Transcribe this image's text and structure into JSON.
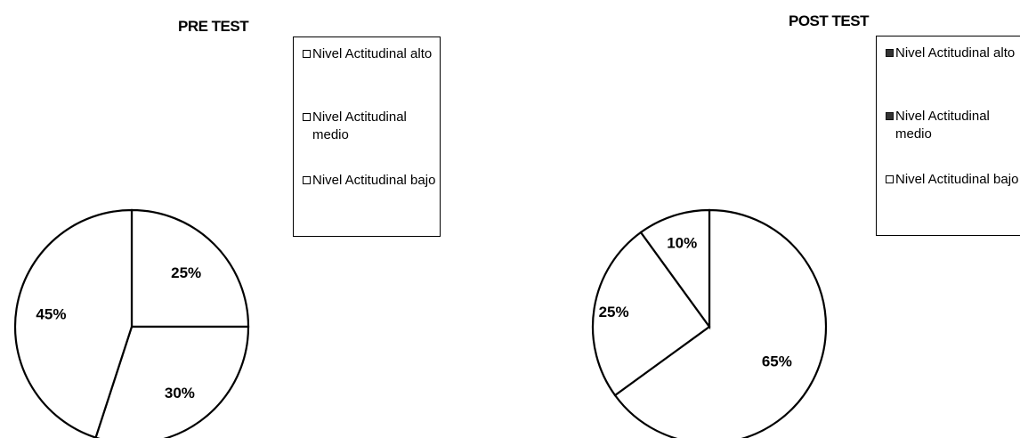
{
  "chart_data": [
    {
      "type": "pie",
      "title": "PRE TEST",
      "categories": [
        "Nivel Actitudinal alto",
        "Nivel Actitudinal medio",
        "Nivel Actitudinal bajo"
      ],
      "values": [
        25,
        30,
        45
      ],
      "labels": [
        "25%",
        "30%",
        "45%"
      ],
      "legend": {
        "entries": [
          "Nivel Actitudinal alto",
          "Nivel Actitudinal medio",
          "Nivel Actitudinal bajo"
        ],
        "placement": "right"
      }
    },
    {
      "type": "pie",
      "title": "POST TEST",
      "categories": [
        "Nivel Actitudinal alto",
        "Nivel Actitudinal medio",
        "Nivel Actitudinal bajo"
      ],
      "values": [
        65,
        25,
        10
      ],
      "labels": [
        "65%",
        "25%",
        "10%"
      ],
      "legend": {
        "entries": [
          "Nivel Actitudinal alto",
          "Nivel Actitudinal medio",
          "Nivel Actitudinal bajo"
        ],
        "placement": "right"
      }
    }
  ]
}
